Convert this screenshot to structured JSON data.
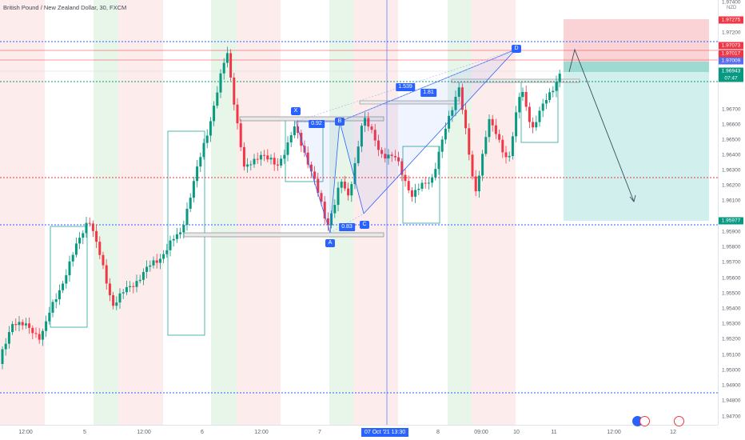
{
  "title": "British Pound / New Zealand Dollar, 30, FXCM",
  "currency": "NZD",
  "y_axis": {
    "labels": [
      "1.97400",
      "1.97200",
      "1.96700",
      "1.96600",
      "1.96500",
      "1.96400",
      "1.96300",
      "1.96200",
      "1.96100",
      "1.95900",
      "1.95800",
      "1.95700",
      "1.95600",
      "1.95500",
      "1.95400",
      "1.95300",
      "1.95200",
      "1.95100",
      "1.95000",
      "1.94900",
      "1.94800",
      "1.94700"
    ],
    "tags": [
      {
        "text": "1.97275",
        "color": "#f23645"
      },
      {
        "text": "1.97073",
        "color": "#f23645"
      },
      {
        "text": "1.97017",
        "color": "#f23645"
      },
      {
        "text": "1.97009",
        "color": "#5b6cf0"
      },
      {
        "text": "1.96943",
        "color": "#089981"
      },
      {
        "text": "07:47",
        "color": "#089981"
      },
      {
        "text": "1.95977",
        "color": "#089981"
      }
    ]
  },
  "x_axis": {
    "labels": [
      "12:00",
      "5",
      "12:00",
      "6",
      "12:00",
      "7",
      "8",
      "09:00",
      "10",
      "11",
      "12:00",
      "12"
    ],
    "cursor_label": "07 Oct '21   13:30"
  },
  "harmonic": {
    "points": [
      "X",
      "A",
      "B",
      "C",
      "D"
    ],
    "ratios": [
      "0.92",
      "0.83",
      "1.539",
      "1.81"
    ]
  },
  "chart_data": {
    "type": "candlestick",
    "symbol": "GBPNZD",
    "timeframe": "30",
    "ylim": [
      1.947,
      1.974
    ],
    "last_price": 1.96943,
    "countdown": "07:47",
    "trade_box": {
      "entry": 1.97009,
      "stop": 1.97275,
      "target": 1.95977
    }
  }
}
